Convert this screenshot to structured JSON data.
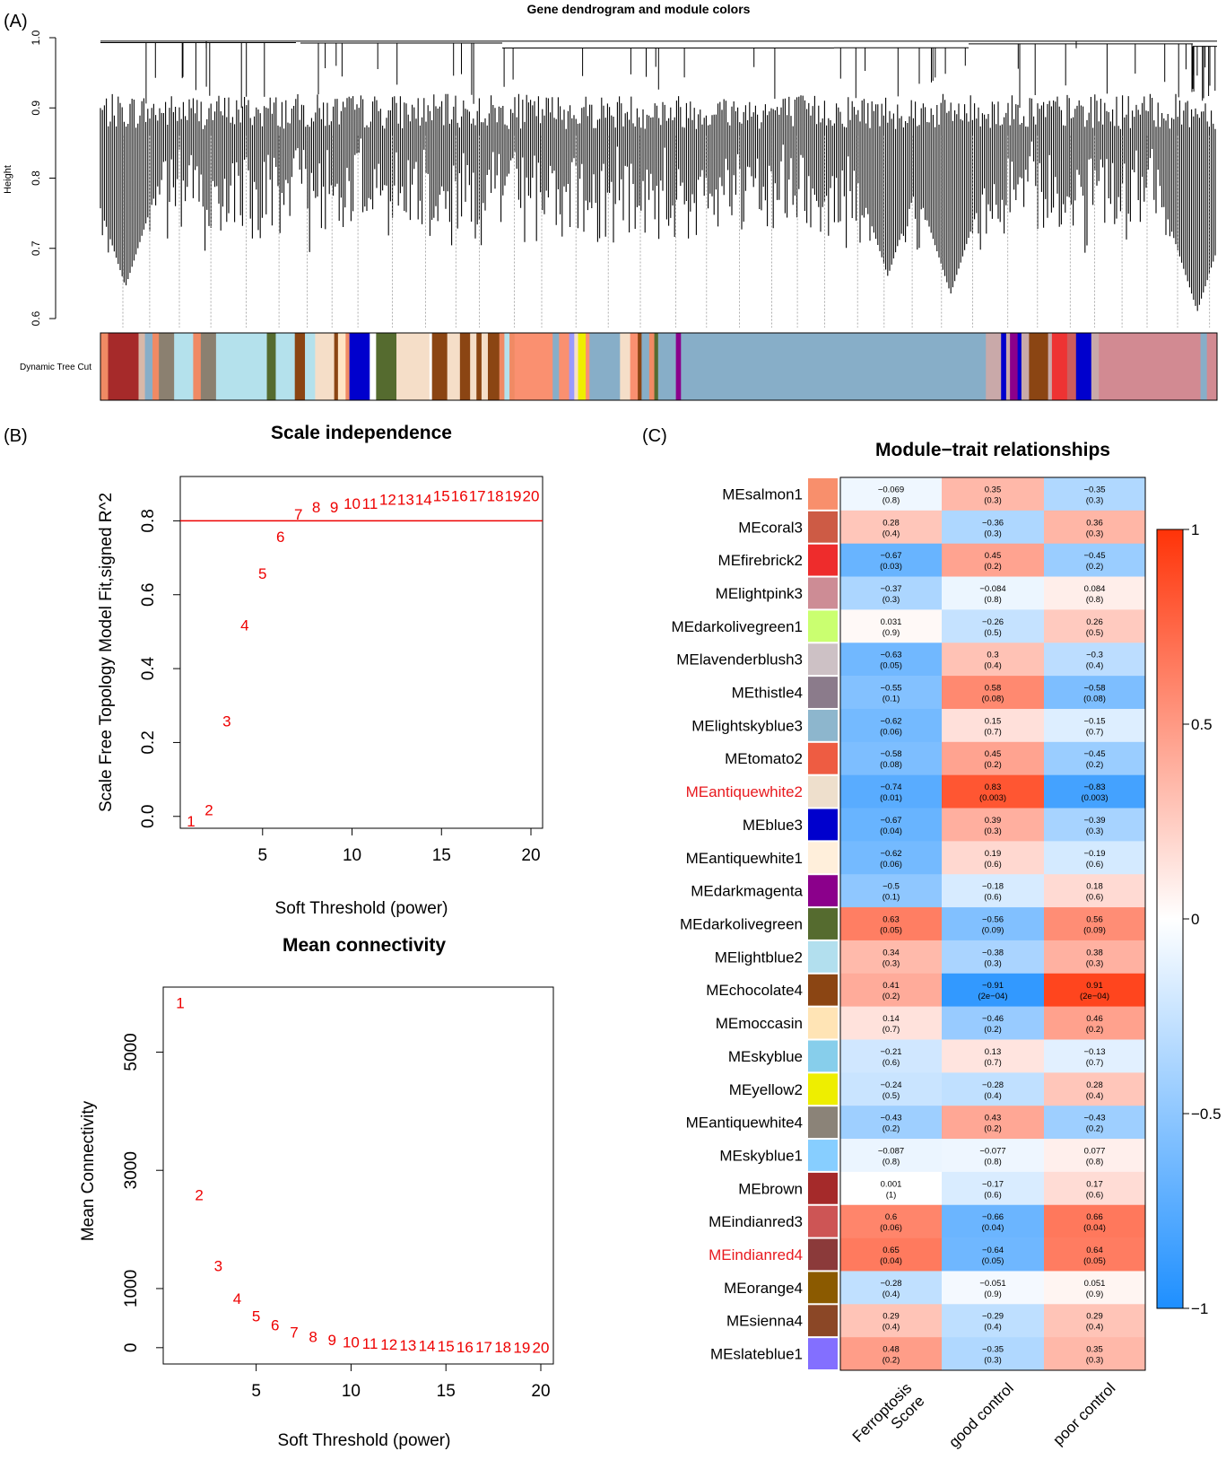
{
  "panels": {
    "a": "(A)",
    "b": "(B)",
    "c": "(C)"
  },
  "dendrogram": {
    "title": "Gene dendrogram and module colors",
    "ylabel": "Height",
    "yticks": [
      "0.6",
      "0.7",
      "0.8",
      "0.9",
      "1.0"
    ],
    "ylim": [
      0.6,
      1.0
    ],
    "colorbar_label": "Dynamic Tree Cut",
    "colorbar_segments": [
      [
        "#f08a64",
        0.6
      ],
      [
        "#a62a2a",
        2.4
      ],
      [
        "#d8b8a8",
        0.5
      ],
      [
        "#87aec8",
        0.6
      ],
      [
        "#f08a64",
        0.5
      ],
      [
        "#8b8070",
        1.2
      ],
      [
        "#b4e1ec",
        1.5
      ],
      [
        "#f08a64",
        0.6
      ],
      [
        "#8b8070",
        1.2
      ],
      [
        "#b4e1ec",
        4.0
      ],
      [
        "#556b2f",
        0.7
      ],
      [
        "#b4e1ec",
        1.5
      ],
      [
        "#8b4513",
        0.8
      ],
      [
        "#b4e1ec",
        0.8
      ],
      [
        "#f5dec8",
        1.5
      ],
      [
        "#8b4513",
        0.3
      ],
      [
        "#ffe4c4",
        0.6
      ],
      [
        "#f08a64",
        0.3
      ],
      [
        "#0000cd",
        1.6
      ],
      [
        "#ffffff",
        0.5
      ],
      [
        "#556b2f",
        1.6
      ],
      [
        "#f5dec8",
        2.6
      ],
      [
        "#ffffff",
        0.2
      ],
      [
        "#8b4513",
        1.2
      ],
      [
        "#f5dec8",
        1.0
      ],
      [
        "#8b4513",
        0.8
      ],
      [
        "#f5dec8",
        0.5
      ],
      [
        "#8b4513",
        0.4
      ],
      [
        "#f5dec8",
        0.5
      ],
      [
        "#8b4513",
        0.9
      ],
      [
        "#f08a64",
        0.4
      ],
      [
        "#b4e1ec",
        0.4
      ],
      [
        "#f08a64",
        0.4
      ],
      [
        "#fa9070",
        3.0
      ],
      [
        "#87aec8",
        0.5
      ],
      [
        "#fa9070",
        0.8
      ],
      [
        "#9999ff",
        0.4
      ],
      [
        "#f5dec8",
        0.3
      ],
      [
        "#eeee00",
        0.6
      ],
      [
        "#fa9070",
        0.3
      ],
      [
        "#87aec8",
        2.4
      ],
      [
        "#f5dec8",
        0.8
      ],
      [
        "#fa9070",
        0.6
      ],
      [
        "#8b4513",
        0.3
      ],
      [
        "#87aec8",
        0.6
      ],
      [
        "#f08a64",
        0.4
      ],
      [
        "#556b2f",
        0.3
      ],
      [
        "#87aec8",
        1.4
      ],
      [
        "#8b008b",
        0.4
      ],
      [
        "#87aec8",
        24.0
      ],
      [
        "#c9a9a9",
        1.2
      ],
      [
        "#0000cd",
        0.4
      ],
      [
        "#c9a9a9",
        0.3
      ],
      [
        "#8b008b",
        0.6
      ],
      [
        "#0000cd",
        0.3
      ],
      [
        "#c9a9a9",
        0.6
      ],
      [
        "#8b4513",
        1.5
      ],
      [
        "#c9a9a9",
        0.3
      ],
      [
        "#ee3333",
        1.2
      ],
      [
        "#cd5c5c",
        0.7
      ],
      [
        "#0000cd",
        1.2
      ],
      [
        "#c9a9a9",
        0.6
      ],
      [
        "#d28a92",
        8.0
      ],
      [
        "#87aec8",
        0.5
      ],
      [
        "#d28a92",
        0.8
      ]
    ]
  },
  "scale_independence": {
    "title": "Scale independence",
    "xlabel": "Soft Threshold (power)",
    "ylabel": "Scale Free Topology Model Fit,signed R^2",
    "xticks": [
      "5",
      "10",
      "15",
      "20"
    ],
    "yticks": [
      "0.0",
      "0.2",
      "0.4",
      "0.6",
      "0.8"
    ],
    "xlim": [
      1,
      20
    ],
    "ylim": [
      -0.02,
      0.92
    ],
    "cutoff": 0.8
  },
  "mean_connectivity": {
    "title": "Mean connectivity",
    "xlabel": "Soft Threshold (power)",
    "ylabel": "Mean Connectivity",
    "xticks": [
      "5",
      "10",
      "15",
      "20"
    ],
    "yticks": [
      "0",
      "1000",
      "3000",
      "5000"
    ],
    "xlim": [
      1,
      20
    ],
    "ylim": [
      -200,
      6100
    ]
  },
  "module_trait": {
    "title": "Module−trait relationships",
    "legend_ticks": [
      "1",
      "0.5",
      "0",
      "−0.5",
      "−1"
    ]
  },
  "chart_data": [
    {
      "type": "dendrogram",
      "panel": "(A)",
      "title": "Gene dendrogram and module colors",
      "ylabel": "Height",
      "ylim": [
        0.6,
        1.0
      ]
    },
    {
      "type": "scatter",
      "panel": "(B)",
      "title": "Scale independence",
      "xlabel": "Soft Threshold (power)",
      "ylabel": "Scale Free Topology Model Fit,signed R^2",
      "x": [
        1,
        2,
        3,
        4,
        5,
        6,
        7,
        8,
        9,
        10,
        11,
        12,
        13,
        14,
        15,
        16,
        17,
        18,
        19,
        20
      ],
      "y": [
        -0.01,
        0.02,
        0.26,
        0.52,
        0.66,
        0.76,
        0.82,
        0.84,
        0.84,
        0.85,
        0.85,
        0.86,
        0.86,
        0.86,
        0.87,
        0.87,
        0.87,
        0.87,
        0.87,
        0.87
      ],
      "point_labels": [
        "1",
        "2",
        "3",
        "4",
        "5",
        "6",
        "7",
        "8",
        "9",
        "10",
        "11",
        "12",
        "13",
        "14",
        "15",
        "16",
        "17",
        "18",
        "19",
        "20"
      ],
      "hline": 0.8
    },
    {
      "type": "scatter",
      "panel": "(B)",
      "title": "Mean connectivity",
      "xlabel": "Soft Threshold (power)",
      "ylabel": "Mean Connectivity",
      "x": [
        1,
        2,
        3,
        4,
        5,
        6,
        7,
        8,
        9,
        10,
        11,
        12,
        13,
        14,
        15,
        16,
        17,
        18,
        19,
        20
      ],
      "y": [
        5850,
        2600,
        1400,
        850,
        550,
        400,
        280,
        200,
        150,
        110,
        90,
        70,
        60,
        50,
        40,
        30,
        30,
        25,
        20,
        20
      ],
      "point_labels": [
        "1",
        "2",
        "3",
        "4",
        "5",
        "6",
        "7",
        "8",
        "9",
        "10",
        "11",
        "12",
        "13",
        "14",
        "15",
        "16",
        "17",
        "18",
        "19",
        "20"
      ]
    },
    {
      "type": "heatmap",
      "panel": "(C)",
      "title": "Module−trait relationships",
      "columns": [
        "Ferroptosis\nScore",
        "good control",
        "poor control"
      ],
      "range": [
        -1,
        1
      ],
      "rows": [
        {
          "name": "MEsalmon1",
          "color": "#f88f6c",
          "highlight": false,
          "cells": [
            {
              "r": -0.069,
              "p": "(0.8)"
            },
            {
              "r": 0.35,
              "p": "(0.3)"
            },
            {
              "r": -0.35,
              "p": "(0.3)"
            }
          ]
        },
        {
          "name": "MEcoral3",
          "color": "#cd5b45",
          "highlight": false,
          "cells": [
            {
              "r": 0.28,
              "p": "(0.4)"
            },
            {
              "r": -0.36,
              "p": "(0.3)"
            },
            {
              "r": 0.36,
              "p": "(0.3)"
            }
          ]
        },
        {
          "name": "MEfirebrick2",
          "color": "#ee2c2c",
          "highlight": false,
          "cells": [
            {
              "r": -0.67,
              "p": "(0.03)"
            },
            {
              "r": 0.45,
              "p": "(0.2)"
            },
            {
              "r": -0.45,
              "p": "(0.2)"
            }
          ]
        },
        {
          "name": "MElightpink3",
          "color": "#cd8c95",
          "highlight": false,
          "cells": [
            {
              "r": -0.37,
              "p": "(0.3)"
            },
            {
              "r": -0.084,
              "p": "(0.8)"
            },
            {
              "r": 0.084,
              "p": "(0.8)"
            }
          ]
        },
        {
          "name": "MEdarkolivegreen1",
          "color": "#caff70",
          "highlight": false,
          "cells": [
            {
              "r": 0.031,
              "p": "(0.9)"
            },
            {
              "r": -0.26,
              "p": "(0.5)"
            },
            {
              "r": 0.26,
              "p": "(0.5)"
            }
          ]
        },
        {
          "name": "MElavenderblush3",
          "color": "#cdc1c5",
          "highlight": false,
          "cells": [
            {
              "r": -0.63,
              "p": "(0.05)"
            },
            {
              "r": 0.3,
              "p": "(0.4)"
            },
            {
              "r": -0.3,
              "p": "(0.4)"
            }
          ]
        },
        {
          "name": "MEthistle4",
          "color": "#8b7b8b",
          "highlight": false,
          "cells": [
            {
              "r": -0.55,
              "p": "(0.1)"
            },
            {
              "r": 0.58,
              "p": "(0.08)"
            },
            {
              "r": -0.58,
              "p": "(0.08)"
            }
          ]
        },
        {
          "name": "MElightskyblue3",
          "color": "#8db6cd",
          "highlight": false,
          "cells": [
            {
              "r": -0.62,
              "p": "(0.06)"
            },
            {
              "r": 0.15,
              "p": "(0.7)"
            },
            {
              "r": -0.15,
              "p": "(0.7)"
            }
          ]
        },
        {
          "name": "MEtomato2",
          "color": "#ee5c42",
          "highlight": false,
          "cells": [
            {
              "r": -0.58,
              "p": "(0.08)"
            },
            {
              "r": 0.45,
              "p": "(0.2)"
            },
            {
              "r": -0.45,
              "p": "(0.2)"
            }
          ]
        },
        {
          "name": "MEantiquewhite2",
          "color": "#eedfcc",
          "highlight": true,
          "cells": [
            {
              "r": -0.74,
              "p": "(0.01)"
            },
            {
              "r": 0.83,
              "p": "(0.003)"
            },
            {
              "r": -0.83,
              "p": "(0.003)"
            }
          ]
        },
        {
          "name": "MEblue3",
          "color": "#0000cd",
          "highlight": false,
          "cells": [
            {
              "r": -0.67,
              "p": "(0.04)"
            },
            {
              "r": 0.39,
              "p": "(0.3)"
            },
            {
              "r": -0.39,
              "p": "(0.3)"
            }
          ]
        },
        {
          "name": "MEantiquewhite1",
          "color": "#ffefdb",
          "highlight": false,
          "cells": [
            {
              "r": -0.62,
              "p": "(0.06)"
            },
            {
              "r": 0.19,
              "p": "(0.6)"
            },
            {
              "r": -0.19,
              "p": "(0.6)"
            }
          ]
        },
        {
          "name": "MEdarkmagenta",
          "color": "#8b008b",
          "highlight": false,
          "cells": [
            {
              "r": -0.5,
              "p": "(0.1)"
            },
            {
              "r": -0.18,
              "p": "(0.6)"
            },
            {
              "r": 0.18,
              "p": "(0.6)"
            }
          ]
        },
        {
          "name": "MEdarkolivegreen",
          "color": "#556b2f",
          "highlight": false,
          "cells": [
            {
              "r": 0.63,
              "p": "(0.05)"
            },
            {
              "r": -0.56,
              "p": "(0.09)"
            },
            {
              "r": 0.56,
              "p": "(0.09)"
            }
          ]
        },
        {
          "name": "MElightblue2",
          "color": "#b2dfee",
          "highlight": false,
          "cells": [
            {
              "r": 0.34,
              "p": "(0.3)"
            },
            {
              "r": -0.38,
              "p": "(0.3)"
            },
            {
              "r": 0.38,
              "p": "(0.3)"
            }
          ]
        },
        {
          "name": "MEchocolate4",
          "color": "#8b4513",
          "highlight": false,
          "cells": [
            {
              "r": 0.41,
              "p": "(0.2)"
            },
            {
              "r": -0.91,
              "p": "(2e−04)"
            },
            {
              "r": 0.91,
              "p": "(2e−04)"
            }
          ]
        },
        {
          "name": "MEmoccasin",
          "color": "#ffe4b5",
          "highlight": false,
          "cells": [
            {
              "r": 0.14,
              "p": "(0.7)"
            },
            {
              "r": -0.46,
              "p": "(0.2)"
            },
            {
              "r": 0.46,
              "p": "(0.2)"
            }
          ]
        },
        {
          "name": "MEskyblue",
          "color": "#87ceeb",
          "highlight": false,
          "cells": [
            {
              "r": -0.21,
              "p": "(0.6)"
            },
            {
              "r": 0.13,
              "p": "(0.7)"
            },
            {
              "r": -0.13,
              "p": "(0.7)"
            }
          ]
        },
        {
          "name": "MEyellow2",
          "color": "#eeee00",
          "highlight": false,
          "cells": [
            {
              "r": -0.24,
              "p": "(0.5)"
            },
            {
              "r": -0.28,
              "p": "(0.4)"
            },
            {
              "r": 0.28,
              "p": "(0.4)"
            }
          ]
        },
        {
          "name": "MEantiquewhite4",
          "color": "#8b8378",
          "highlight": false,
          "cells": [
            {
              "r": -0.43,
              "p": "(0.2)"
            },
            {
              "r": 0.43,
              "p": "(0.2)"
            },
            {
              "r": -0.43,
              "p": "(0.2)"
            }
          ]
        },
        {
          "name": "MEskyblue1",
          "color": "#87ceff",
          "highlight": false,
          "cells": [
            {
              "r": -0.087,
              "p": "(0.8)"
            },
            {
              "r": -0.077,
              "p": "(0.8)"
            },
            {
              "r": 0.077,
              "p": "(0.8)"
            }
          ]
        },
        {
          "name": "MEbrown",
          "color": "#a52a2a",
          "highlight": false,
          "cells": [
            {
              "r": 0.001,
              "p": "(1)"
            },
            {
              "r": -0.17,
              "p": "(0.6)"
            },
            {
              "r": 0.17,
              "p": "(0.6)"
            }
          ]
        },
        {
          "name": "MEindianred3",
          "color": "#cd5555",
          "highlight": false,
          "cells": [
            {
              "r": 0.6,
              "p": "(0.06)"
            },
            {
              "r": -0.66,
              "p": "(0.04)"
            },
            {
              "r": 0.66,
              "p": "(0.04)"
            }
          ]
        },
        {
          "name": "MEindianred4",
          "color": "#8b3a3a",
          "highlight": true,
          "cells": [
            {
              "r": 0.65,
              "p": "(0.04)"
            },
            {
              "r": -0.64,
              "p": "(0.05)"
            },
            {
              "r": 0.64,
              "p": "(0.05)"
            }
          ]
        },
        {
          "name": "MEorange4",
          "color": "#8b5a00",
          "highlight": false,
          "cells": [
            {
              "r": -0.28,
              "p": "(0.4)"
            },
            {
              "r": -0.051,
              "p": "(0.9)"
            },
            {
              "r": 0.051,
              "p": "(0.9)"
            }
          ]
        },
        {
          "name": "MEsienna4",
          "color": "#8b4726",
          "highlight": false,
          "cells": [
            {
              "r": 0.29,
              "p": "(0.4)"
            },
            {
              "r": -0.29,
              "p": "(0.4)"
            },
            {
              "r": 0.29,
              "p": "(0.4)"
            }
          ]
        },
        {
          "name": "MEslateblue1",
          "color": "#836fff",
          "highlight": false,
          "cells": [
            {
              "r": 0.48,
              "p": "(0.2)"
            },
            {
              "r": -0.35,
              "p": "(0.3)"
            },
            {
              "r": 0.35,
              "p": "(0.3)"
            }
          ]
        }
      ]
    }
  ]
}
